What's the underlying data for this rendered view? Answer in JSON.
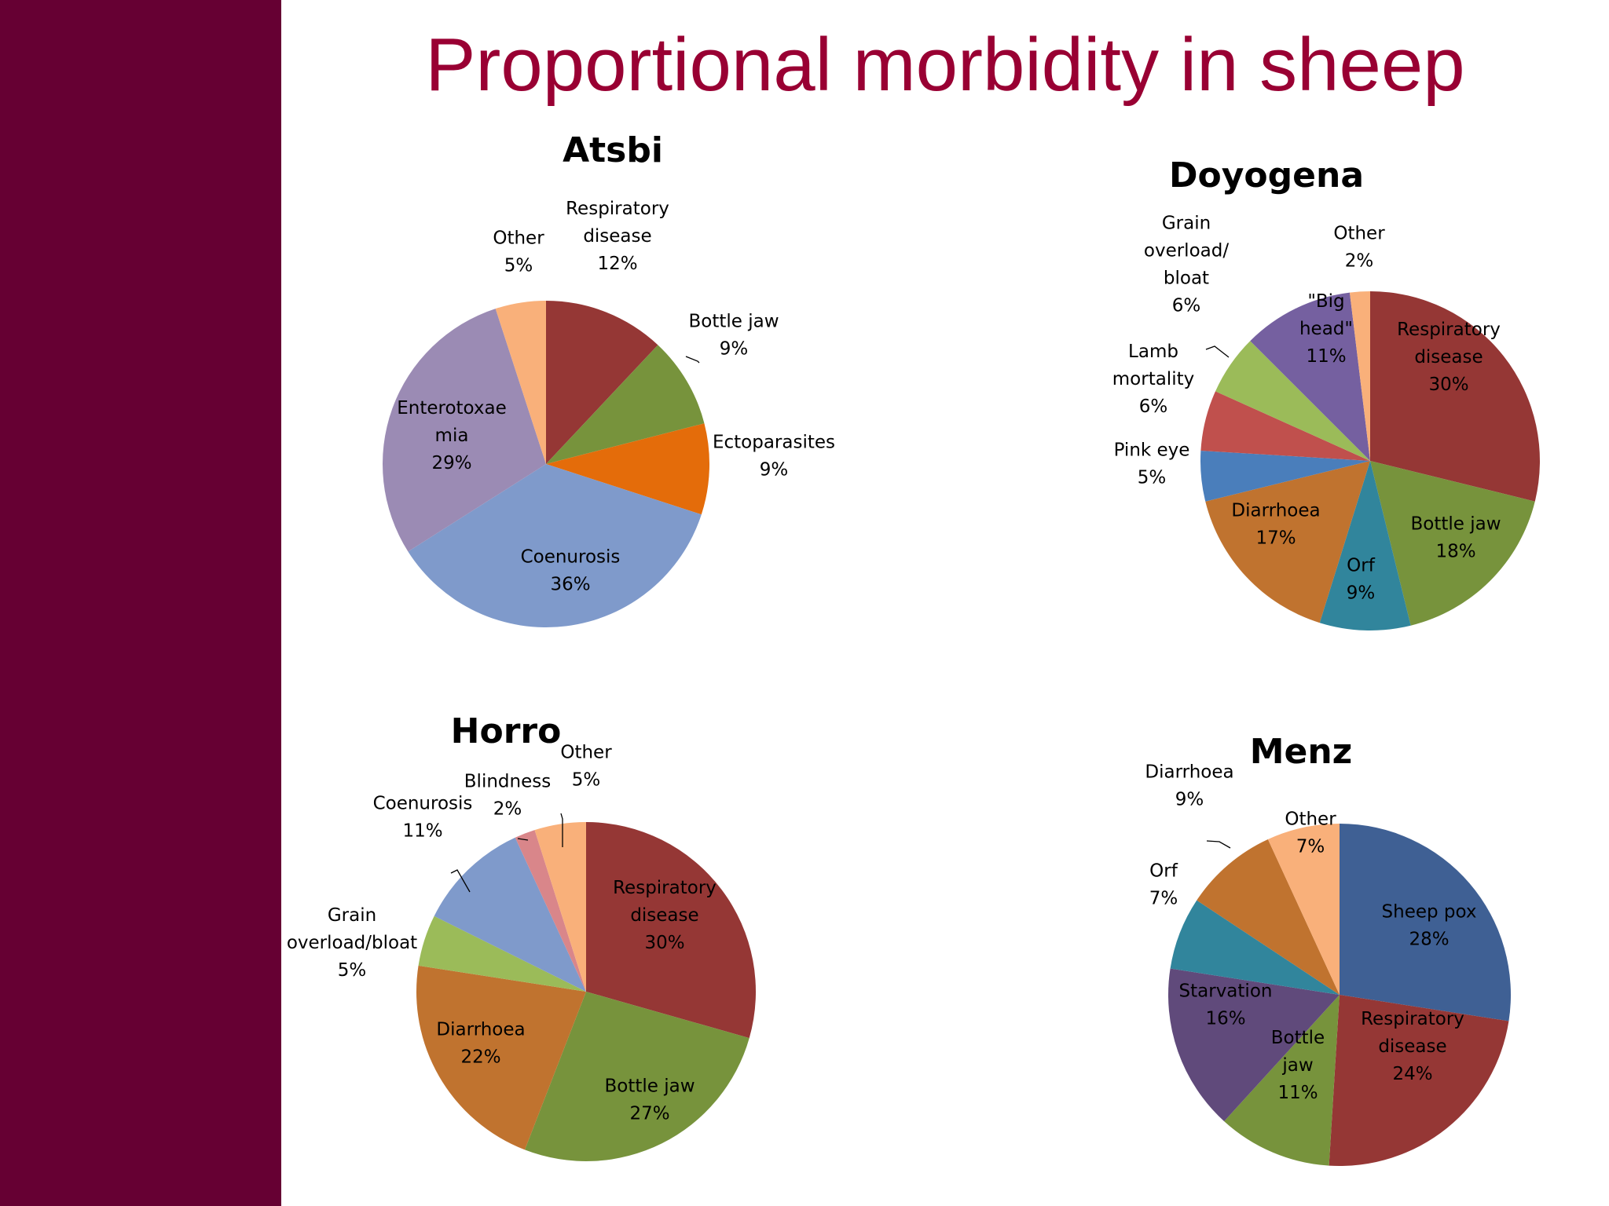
{
  "slide": {
    "title": "Proportional morbidity in sheep",
    "accent_color": "#660033",
    "title_color": "#990033"
  },
  "chart_data": [
    {
      "type": "pie",
      "title": "Atsbi",
      "categories": [
        "Respiratory disease",
        "Bottle jaw",
        "Ectoparasites",
        "Coenurosis",
        "Enterotoxaemia",
        "Other"
      ],
      "values": [
        12,
        9,
        9,
        36,
        29,
        5
      ],
      "labels": [
        {
          "lines": [
            "Respiratory",
            "disease",
            "12%"
          ]
        },
        {
          "lines": [
            "Bottle jaw",
            "9%"
          ]
        },
        {
          "lines": [
            "Ectoparasites",
            "9%"
          ]
        },
        {
          "lines": [
            "Coenurosis",
            "36%"
          ]
        },
        {
          "lines": [
            "Enterotoxae",
            "mia",
            "29%"
          ]
        },
        {
          "lines": [
            "Other",
            "5%"
          ]
        }
      ],
      "colors": [
        "#953735",
        "#77933C",
        "#E46C0A",
        "#7F9ACB",
        "#9B8BB4",
        "#F9B07A"
      ]
    },
    {
      "type": "pie",
      "title": "Doyogena",
      "categories": [
        "Respiratory disease",
        "Bottle jaw",
        "Orf",
        "Diarrhoea",
        "Pink eye",
        "Lamb mortality",
        "Grain overload/bloat",
        "\"Big head\"",
        "Other"
      ],
      "values": [
        30,
        18,
        9,
        17,
        5,
        6,
        6,
        11,
        2
      ],
      "labels": [
        {
          "lines": [
            "Respiratory",
            "disease",
            "30%"
          ]
        },
        {
          "lines": [
            "Bottle jaw",
            "18%"
          ]
        },
        {
          "lines": [
            "Orf",
            "9%"
          ]
        },
        {
          "lines": [
            "Diarrhoea",
            "17%"
          ]
        },
        {
          "lines": [
            "Pink eye",
            "5%"
          ]
        },
        {
          "lines": [
            "Lamb",
            "mortality",
            "6%"
          ]
        },
        {
          "lines": [
            "Grain",
            "overload/",
            "bloat",
            "6%"
          ]
        },
        {
          "lines": [
            "\"Big",
            "head\"",
            "11%"
          ]
        },
        {
          "lines": [
            "Other",
            "2%"
          ]
        }
      ],
      "colors": [
        "#953735",
        "#77933C",
        "#31859C",
        "#C0732F",
        "#4A7EBB",
        "#C0504D",
        "#9BBB59",
        "#7560A0",
        "#F9B07A"
      ]
    },
    {
      "type": "pie",
      "title": "Horro",
      "categories": [
        "Respiratory disease",
        "Bottle jaw",
        "Diarrhoea",
        "Grain overload/bloat",
        "Coenurosis",
        "Blindness",
        "Other"
      ],
      "values": [
        30,
        27,
        22,
        5,
        11,
        2,
        5
      ],
      "labels": [
        {
          "lines": [
            "Respiratory",
            "disease",
            "30%"
          ]
        },
        {
          "lines": [
            "Bottle jaw",
            "27%"
          ]
        },
        {
          "lines": [
            "Diarrhoea",
            "22%"
          ]
        },
        {
          "lines": [
            "Grain",
            "overload/bloat",
            "5%"
          ]
        },
        {
          "lines": [
            "Coenurosis",
            "11%"
          ]
        },
        {
          "lines": [
            "Blindness",
            "2%"
          ]
        },
        {
          "lines": [
            "Other",
            "5%"
          ]
        }
      ],
      "colors": [
        "#953735",
        "#77933C",
        "#C0732F",
        "#9BBB59",
        "#7F9ACB",
        "#D9868A",
        "#F9B07A"
      ]
    },
    {
      "type": "pie",
      "title": "Menz",
      "categories": [
        "Sheep pox",
        "Respiratory disease",
        "Bottle jaw",
        "Starvation",
        "Orf",
        "Diarrhoea",
        "Other"
      ],
      "values": [
        28,
        24,
        11,
        16,
        7,
        9,
        7
      ],
      "labels": [
        {
          "lines": [
            "Sheep pox",
            "28%"
          ]
        },
        {
          "lines": [
            "Respiratory",
            "disease",
            "24%"
          ]
        },
        {
          "lines": [
            "Bottle",
            "jaw",
            "11%"
          ]
        },
        {
          "lines": [
            "Starvation",
            "16%"
          ]
        },
        {
          "lines": [
            "Orf",
            "7%"
          ]
        },
        {
          "lines": [
            "Diarrhoea",
            "9%"
          ]
        },
        {
          "lines": [
            "Other",
            "7%"
          ]
        }
      ],
      "colors": [
        "#3F6094",
        "#953735",
        "#77933C",
        "#604A7B",
        "#31859C",
        "#C0732F",
        "#F9B07A"
      ]
    }
  ]
}
